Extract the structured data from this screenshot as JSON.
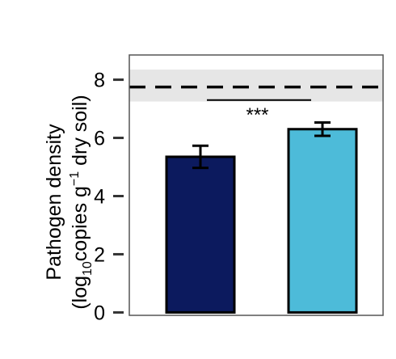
{
  "chart_data": {
    "type": "bar",
    "categories": [
      "",
      ""
    ],
    "values": [
      5.35,
      6.3
    ],
    "errors": [
      0.38,
      0.23
    ],
    "bar_colors": [
      "#0c1a5e",
      "#4dbbd9"
    ],
    "ylim": [
      -0.1,
      8.85
    ],
    "yticks": [
      "0",
      "2",
      "4",
      "6",
      "8"
    ],
    "ytick_values": [
      0,
      2,
      4,
      6,
      8
    ],
    "ylabel_line1": "Pathogen density",
    "ylabel_prefix": "(log",
    "ylabel_sub": "10",
    "ylabel_mid": "copies g",
    "ylabel_sup": "−1",
    "ylabel_suffix": " dry soil)",
    "reference_line": 7.75,
    "reference_band": [
      7.25,
      8.35
    ],
    "significance": {
      "label": "***",
      "y": 7.3,
      "between": [
        0,
        1
      ]
    },
    "grid": false,
    "legend": "none"
  }
}
